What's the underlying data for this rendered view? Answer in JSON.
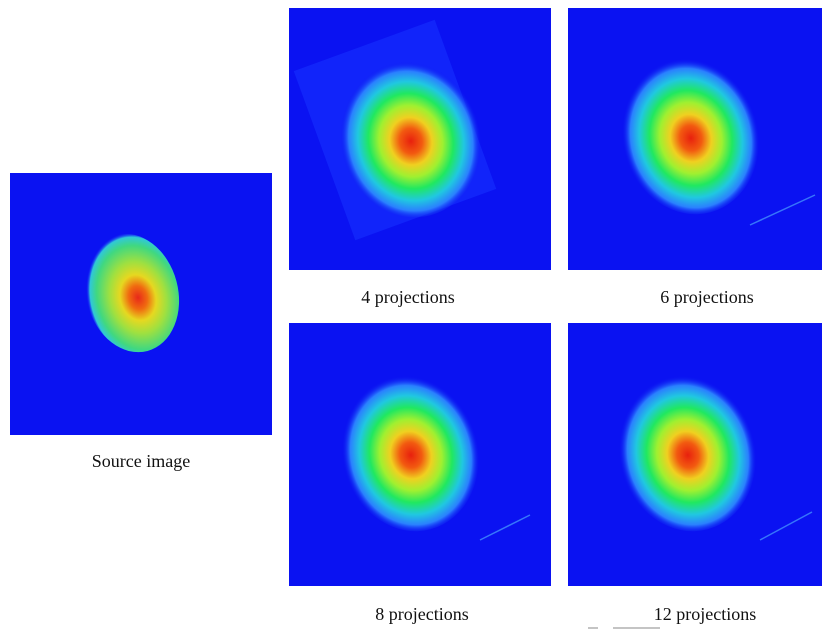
{
  "source": {
    "caption": "Source image"
  },
  "reconstructions": [
    {
      "caption": "4 projections"
    },
    {
      "caption": "6 projections"
    },
    {
      "caption": "8 projections"
    },
    {
      "caption": "12 projections"
    }
  ]
}
